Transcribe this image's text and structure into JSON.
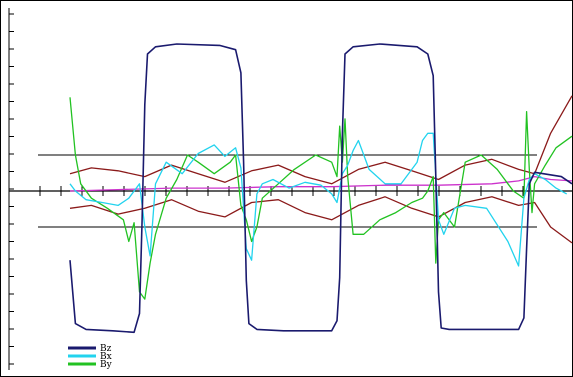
{
  "chart_data": {
    "type": "line",
    "title": "",
    "xlabel": "",
    "ylabel": "",
    "grid": false,
    "legend_placement": "bottom-left",
    "xlim": [
      0,
      100
    ],
    "ylim": [
      -1.2,
      1.2
    ],
    "reference_lines": [
      0.25,
      0.0,
      -0.25
    ],
    "series": [
      {
        "name": "Bz",
        "color": "#1a1a6e",
        "x": [
          6,
          6.5,
          7,
          9,
          14,
          18,
          19,
          19.5,
          20,
          20.5,
          22,
          26,
          34,
          37,
          38,
          38.5,
          39,
          39.5,
          41,
          46,
          55,
          56,
          56.5,
          57,
          57.5,
          59,
          64,
          71,
          73,
          74,
          74.5,
          75,
          75.5,
          77,
          83,
          90,
          91,
          91.5,
          92,
          93,
          98,
          100
        ],
        "y": [
          -0.48,
          -0.7,
          -0.92,
          -0.96,
          -0.97,
          -0.98,
          -0.85,
          -0.2,
          0.6,
          0.95,
          1.0,
          1.02,
          1.01,
          0.98,
          0.82,
          0.2,
          -0.62,
          -0.92,
          -0.96,
          -0.97,
          -0.97,
          -0.9,
          -0.6,
          0.4,
          0.95,
          1.0,
          1.02,
          1.0,
          0.95,
          0.8,
          0.1,
          -0.7,
          -0.95,
          -0.96,
          -0.96,
          -0.96,
          -0.88,
          -0.4,
          0.05,
          0.13,
          0.1,
          0.05
        ]
      },
      {
        "name": "Bx",
        "color": "#22d3ee",
        "x": [
          6,
          7,
          9,
          12,
          15,
          17,
          19,
          20,
          21,
          22,
          24,
          27,
          30,
          33,
          35,
          37,
          38,
          39,
          40,
          41,
          42,
          44,
          47,
          50,
          53,
          55,
          56,
          57,
          58,
          59,
          60,
          62,
          65,
          68,
          71,
          72,
          73,
          74,
          75,
          76,
          78,
          80,
          84,
          88,
          90,
          91,
          92,
          93,
          95,
          97,
          99
        ],
        "y": [
          0.05,
          0.0,
          -0.06,
          -0.08,
          -0.1,
          -0.05,
          0.05,
          -0.25,
          -0.45,
          0.05,
          0.2,
          0.12,
          0.26,
          0.32,
          0.24,
          0.3,
          0.16,
          -0.4,
          -0.48,
          -0.02,
          0.05,
          0.08,
          0.02,
          0.06,
          0.04,
          -0.02,
          -0.08,
          0.12,
          0.18,
          0.28,
          0.35,
          0.15,
          0.05,
          0.05,
          0.2,
          0.35,
          0.4,
          0.4,
          -0.2,
          -0.3,
          -0.12,
          -0.1,
          -0.12,
          -0.35,
          -0.52,
          -0.05,
          0.08,
          0.12,
          0.08,
          0.02,
          -0.02
        ]
      },
      {
        "name": "By",
        "color": "#22c222",
        "x": [
          6,
          7,
          8,
          10,
          13,
          16,
          17,
          18,
          19,
          20,
          21,
          22,
          24,
          26,
          28,
          30,
          33,
          36,
          37,
          38,
          39,
          40,
          41,
          42,
          45,
          48,
          52,
          55,
          56,
          56.5,
          57,
          57.5,
          58,
          59,
          61,
          64,
          67,
          70,
          72,
          73,
          74,
          74.5,
          75,
          76,
          78,
          80,
          83,
          86,
          89,
          91,
          91.5,
          92,
          92.5,
          93,
          95,
          97,
          100
        ],
        "y": [
          0.65,
          0.25,
          0.05,
          -0.05,
          -0.12,
          -0.2,
          -0.35,
          -0.22,
          -0.7,
          -0.75,
          -0.5,
          -0.3,
          -0.05,
          0.08,
          0.25,
          0.2,
          0.12,
          0.2,
          0.25,
          -0.1,
          -0.2,
          -0.35,
          -0.25,
          -0.05,
          0.05,
          0.15,
          0.25,
          0.2,
          0.1,
          0.45,
          0.2,
          0.5,
          0.1,
          -0.3,
          -0.3,
          -0.2,
          -0.15,
          -0.08,
          -0.05,
          0.0,
          0.1,
          -0.5,
          -0.2,
          -0.15,
          -0.25,
          0.2,
          0.25,
          0.15,
          0.0,
          -0.05,
          0.55,
          0.15,
          -0.15,
          0.05,
          0.18,
          0.3,
          0.38
        ]
      },
      {
        "name": "",
        "color": "#8b1a1a",
        "x": [
          6,
          10,
          15,
          20,
          25,
          30,
          35,
          40,
          45,
          50,
          55,
          60,
          65,
          70,
          75,
          80,
          85,
          90,
          93,
          96,
          100
        ],
        "y": [
          0.12,
          0.16,
          0.14,
          0.1,
          0.18,
          0.12,
          0.06,
          0.14,
          0.18,
          0.1,
          0.05,
          0.15,
          0.2,
          0.14,
          0.08,
          0.18,
          0.22,
          0.15,
          0.12,
          0.4,
          0.66
        ]
      },
      {
        "name": "",
        "color": "#8b1a1a",
        "x": [
          6,
          10,
          15,
          20,
          25,
          30,
          35,
          40,
          45,
          50,
          55,
          60,
          65,
          70,
          75,
          80,
          85,
          90,
          93,
          96,
          100
        ],
        "y": [
          -0.12,
          -0.1,
          -0.16,
          -0.12,
          -0.06,
          -0.14,
          -0.18,
          -0.08,
          -0.06,
          -0.15,
          -0.2,
          -0.1,
          -0.04,
          -0.12,
          -0.18,
          -0.08,
          -0.04,
          -0.1,
          -0.08,
          -0.25,
          -0.36
        ]
      },
      {
        "name": "",
        "color": "#cc33cc",
        "x": [
          6,
          15,
          25,
          35,
          45,
          55,
          65,
          75,
          85,
          90,
          93,
          96,
          100
        ],
        "y": [
          0.0,
          0.01,
          0.02,
          0.02,
          0.03,
          0.03,
          0.04,
          0.04,
          0.05,
          0.07,
          0.1,
          0.08,
          0.07
        ]
      }
    ]
  }
}
